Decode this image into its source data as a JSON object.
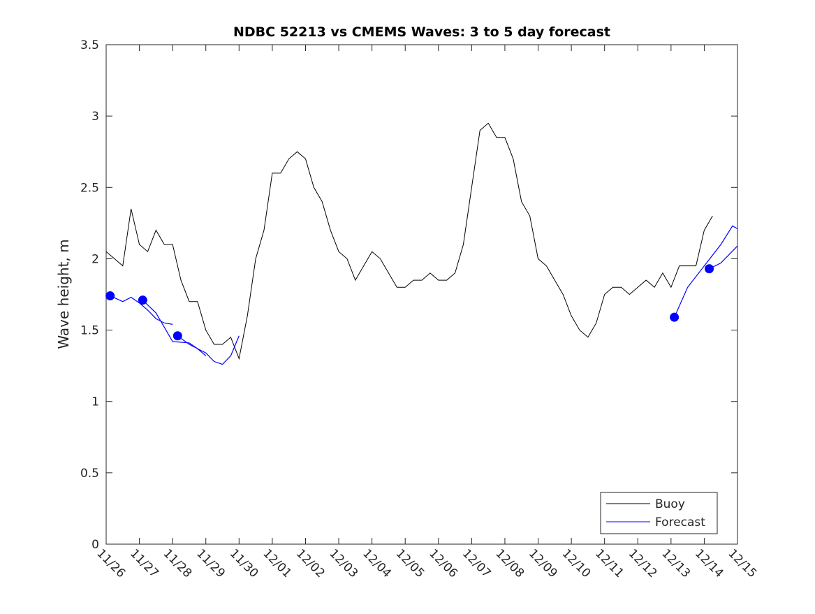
{
  "chart_data": {
    "type": "line",
    "title": "NDBC 52213 vs CMEMS Waves: 3 to 5 day forecast",
    "xlabel": "",
    "ylabel": "Wave height, m",
    "ylim": [
      0,
      3.5
    ],
    "xlim_days": [
      0,
      19
    ],
    "yticks": [
      "0",
      "0.5",
      "1",
      "1.5",
      "2",
      "2.5",
      "3",
      "3.5"
    ],
    "xticks": [
      "11/26",
      "11/27",
      "11/28",
      "11/29",
      "11/30",
      "12/01",
      "12/02",
      "12/03",
      "12/04",
      "12/05",
      "12/06",
      "12/07",
      "12/08",
      "12/09",
      "12/10",
      "12/11",
      "12/12",
      "12/13",
      "12/14",
      "12/15"
    ],
    "legend": {
      "position": "bottom-right",
      "entries": [
        "Buoy",
        "Forecast"
      ]
    },
    "colors": {
      "buoy": "#000000",
      "forecast": "#0000ff"
    },
    "series": [
      {
        "name": "Buoy",
        "x_step_days": 0.25,
        "values": [
          2.05,
          2.0,
          1.95,
          2.35,
          2.1,
          2.05,
          2.2,
          2.1,
          2.1,
          1.85,
          1.7,
          1.7,
          1.5,
          1.4,
          1.4,
          1.45,
          1.3,
          1.6,
          2.0,
          2.2,
          2.6,
          2.6,
          2.7,
          2.75,
          2.7,
          2.5,
          2.4,
          2.2,
          2.05,
          2.0,
          1.85,
          1.95,
          2.05,
          2.0,
          1.9,
          1.8,
          1.8,
          1.85,
          1.85,
          1.9,
          1.85,
          1.85,
          1.9,
          2.1,
          2.5,
          2.9,
          2.95,
          2.85,
          2.85,
          2.7,
          2.4,
          2.3,
          2.0,
          1.95,
          1.85,
          1.75,
          1.6,
          1.5,
          1.45,
          1.55,
          1.75,
          1.8,
          1.8,
          1.75,
          1.8,
          1.85,
          1.8,
          1.9,
          1.8,
          1.95,
          1.95,
          1.95,
          2.2,
          2.3
        ]
      },
      {
        "name": "Forecast",
        "segments": [
          {
            "x": [
              0.12,
              0.5,
              0.75,
              1.0,
              1.25,
              1.5,
              1.75,
              2.0
            ],
            "y": [
              1.74,
              1.7,
              1.73,
              1.69,
              1.64,
              1.58,
              1.55,
              1.54
            ],
            "marker": true
          },
          {
            "x": [
              1.1,
              1.5,
              1.75,
              2.0,
              2.5,
              2.75,
              3.0
            ],
            "y": [
              1.71,
              1.62,
              1.52,
              1.42,
              1.41,
              1.37,
              1.32
            ],
            "marker": true
          },
          {
            "x": [
              2.15,
              2.5,
              3.0,
              3.25,
              3.5,
              3.75,
              4.0
            ],
            "y": [
              1.46,
              1.4,
              1.34,
              1.28,
              1.26,
              1.32,
              1.46
            ],
            "marker": true
          },
          {
            "x": [
              17.1,
              17.5,
              18.0,
              18.5,
              18.85,
              19.0
            ],
            "y": [
              1.59,
              1.8,
              1.95,
              2.1,
              2.23,
              2.21
            ],
            "marker": true
          },
          {
            "x": [
              18.15,
              18.5,
              18.75,
              19.0
            ],
            "y": [
              1.93,
              1.97,
              2.03,
              2.09
            ],
            "marker": true
          }
        ]
      }
    ]
  }
}
